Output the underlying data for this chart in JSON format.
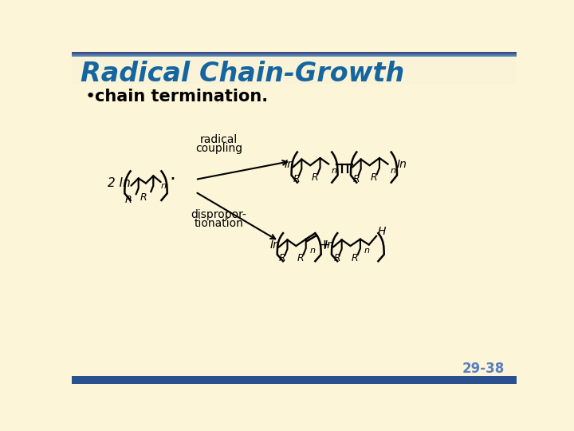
{
  "title": "Radical Chain-Growth",
  "title_color": "#1565a0",
  "title_bg_color": "#faf3d8",
  "top_bar_color1": "#3a3a7a",
  "top_bar_color2": "#5b9fc0",
  "body_bg_color": "#fdf5d8",
  "footer_bar_color": "#2a5090",
  "bullet_text": "chain termination.",
  "page_number": "29-38",
  "page_number_color": "#5b7fbf",
  "text_color": "#1a1a1a"
}
